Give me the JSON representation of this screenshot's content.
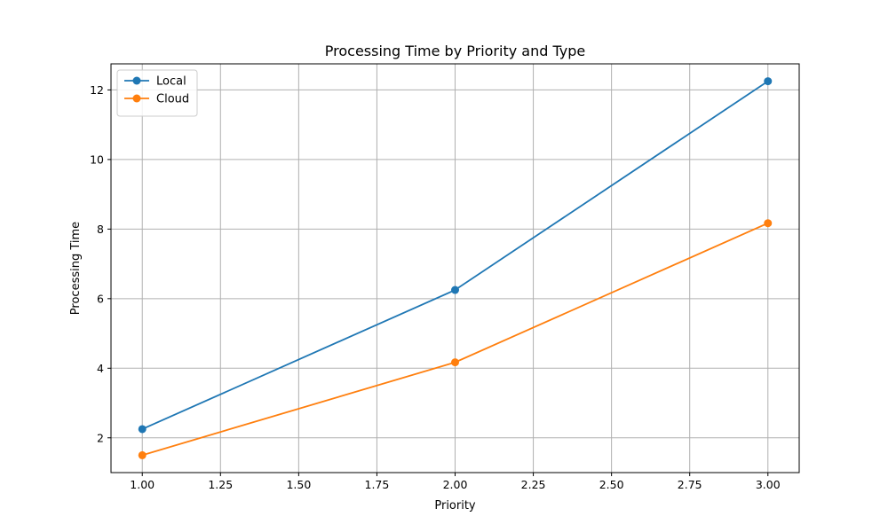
{
  "chart_data": {
    "type": "line",
    "title": "Processing Time by Priority and Type",
    "xlabel": "Priority",
    "ylabel": "Processing Time",
    "x": [
      1.0,
      2.0,
      3.0
    ],
    "xlim": [
      0.9,
      3.1
    ],
    "ylim": [
      1.0,
      12.75
    ],
    "xticks": [
      1.0,
      1.25,
      1.5,
      1.75,
      2.0,
      2.25,
      2.5,
      2.75,
      3.0
    ],
    "xtick_labels": [
      "1.00",
      "1.25",
      "1.50",
      "1.75",
      "2.00",
      "2.25",
      "2.50",
      "2.75",
      "3.00"
    ],
    "yticks": [
      2,
      4,
      6,
      8,
      10,
      12
    ],
    "ytick_labels": [
      "2",
      "4",
      "6",
      "8",
      "10",
      "12"
    ],
    "grid": true,
    "legend_position": "upper-left",
    "series": [
      {
        "name": "Local",
        "color": "#1f77b4",
        "marker": "circle",
        "values": [
          2.25,
          6.25,
          12.25
        ]
      },
      {
        "name": "Cloud",
        "color": "#ff7f0e",
        "marker": "circle",
        "values": [
          1.5,
          4.17,
          8.17
        ]
      }
    ]
  }
}
